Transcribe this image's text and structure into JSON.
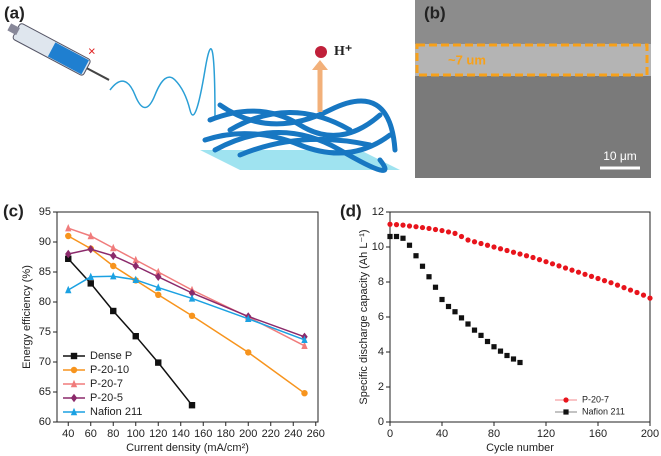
{
  "panel_a": {
    "panel_label": "(a)",
    "ion": "H⁺"
  },
  "panel_b": {
    "panel_label": "(b)",
    "thickness": "~7 um",
    "scale_bar": "10 μm"
  },
  "chart_data": [
    {
      "type": "line",
      "panel_label": "(c)",
      "x_label": "Current density (mA/cm²)",
      "y_label": "Energy efficiency (%)",
      "xlim": [
        30,
        262
      ],
      "xticks": [
        40,
        60,
        80,
        100,
        120,
        140,
        160,
        180,
        200,
        220,
        240,
        260
      ],
      "ylim": [
        60,
        95
      ],
      "yticks": [
        60,
        65,
        70,
        75,
        80,
        85,
        90,
        95
      ],
      "legend": "lower left",
      "series": [
        {
          "name": "Dense P",
          "color": "#111111",
          "marker": "square",
          "x": [
            40,
            60,
            80,
            100,
            120,
            150
          ],
          "values": [
            87.2,
            83.1,
            78.5,
            74.3,
            69.9,
            62.8
          ]
        },
        {
          "name": "P-20-10",
          "color": "#f7941d",
          "marker": "circle",
          "x": [
            40,
            60,
            80,
            100,
            120,
            150,
            200,
            250
          ],
          "values": [
            91.0,
            88.9,
            86.0,
            83.6,
            81.2,
            77.7,
            71.6,
            64.8
          ]
        },
        {
          "name": "P-20-7",
          "color": "#f07c7c",
          "marker": "triangle",
          "x": [
            40,
            60,
            80,
            100,
            120,
            150,
            200,
            250
          ],
          "values": [
            92.3,
            91.0,
            89.0,
            87.0,
            85.0,
            82.0,
            77.5,
            72.7
          ]
        },
        {
          "name": "P-20-5",
          "color": "#8b2a6b",
          "marker": "diamond",
          "x": [
            40,
            60,
            80,
            100,
            120,
            150,
            200,
            250
          ],
          "values": [
            88.0,
            88.8,
            87.7,
            86.0,
            84.2,
            81.5,
            77.6,
            74.2
          ]
        },
        {
          "name": "Nafion 211",
          "color": "#1ba1e2",
          "marker": "triangle",
          "x": [
            40,
            60,
            80,
            100,
            120,
            150,
            200,
            250
          ],
          "values": [
            82.0,
            84.2,
            84.3,
            83.7,
            82.4,
            80.6,
            77.2,
            73.7
          ]
        }
      ]
    },
    {
      "type": "scatter",
      "panel_label": "(d)",
      "x_label": "Cycle number",
      "y_label": "Specific discharge capacity (Ah L⁻¹)",
      "xlim": [
        0,
        200
      ],
      "xticks": [
        0,
        40,
        80,
        120,
        160,
        200
      ],
      "ylim": [
        0,
        12
      ],
      "yticks": [
        0,
        2,
        4,
        6,
        8,
        10,
        12
      ],
      "legend": "lower right",
      "series": [
        {
          "name": "P-20-7",
          "color": "#e8141c",
          "marker": "circle",
          "x": [
            0,
            5,
            10,
            15,
            20,
            25,
            30,
            35,
            40,
            45,
            50,
            55,
            60,
            65,
            70,
            75,
            80,
            85,
            90,
            95,
            100,
            105,
            110,
            115,
            120,
            125,
            130,
            135,
            140,
            145,
            150,
            155,
            160,
            165,
            170,
            175,
            180,
            185,
            190,
            195,
            200
          ],
          "values": [
            11.3,
            11.28,
            11.25,
            11.2,
            11.16,
            11.11,
            11.06,
            11.0,
            10.94,
            10.86,
            10.78,
            10.6,
            10.4,
            10.3,
            10.2,
            10.1,
            10.0,
            9.9,
            9.8,
            9.7,
            9.6,
            9.5,
            9.4,
            9.28,
            9.16,
            9.04,
            8.92,
            8.8,
            8.68,
            8.56,
            8.44,
            8.32,
            8.2,
            8.08,
            7.96,
            7.82,
            7.68,
            7.54,
            7.4,
            7.25,
            7.08
          ]
        },
        {
          "name": "Nafion 211",
          "color": "#111111",
          "marker": "square",
          "x": [
            0,
            5,
            10,
            15,
            20,
            25,
            30,
            35,
            40,
            45,
            50,
            55,
            60,
            65,
            70,
            75,
            80,
            85,
            90,
            95,
            100
          ],
          "values": [
            10.6,
            10.6,
            10.5,
            10.1,
            9.5,
            8.9,
            8.3,
            7.7,
            7.0,
            6.6,
            6.3,
            5.95,
            5.6,
            5.25,
            4.95,
            4.6,
            4.3,
            4.05,
            3.8,
            3.6,
            3.4
          ]
        }
      ]
    }
  ]
}
